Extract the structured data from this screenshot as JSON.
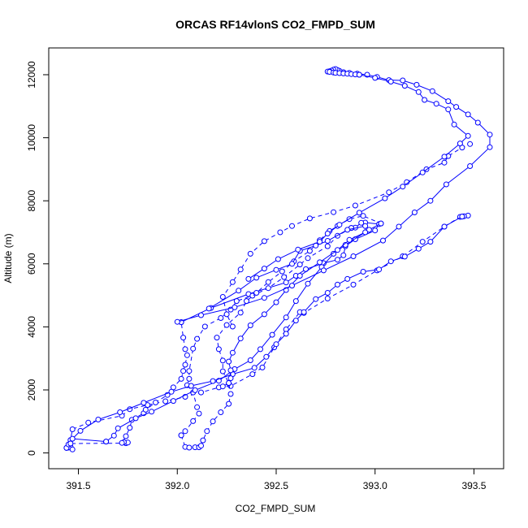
{
  "chart_data": {
    "type": "line",
    "title": "ORCAS RF14vlonS CO2_FMPD_SUM",
    "xlabel": "CO2_FMPD_SUM",
    "ylabel": "Altitude (m)",
    "xlim": [
      391.35,
      393.65
    ],
    "ylim": [
      -500,
      12850
    ],
    "x_ticks": [
      391.5,
      392.0,
      392.5,
      393.0,
      393.5
    ],
    "x_tick_labels": [
      "391.5",
      "392.0",
      "392.5",
      "393.0",
      "393.5"
    ],
    "y_ticks": [
      0,
      2000,
      4000,
      6000,
      8000,
      10000,
      12000
    ],
    "y_tick_labels": [
      "0",
      "2000",
      "4000",
      "6000",
      "8000",
      "10000",
      "12000"
    ],
    "grid": false,
    "legend": "none",
    "colors": {
      "series": "#0000ff",
      "axis": "#000000"
    },
    "series": [
      {
        "line_style": "dashed",
        "points": [
          [
            393.47,
            7530
          ],
          [
            393.45,
            7510
          ],
          [
            393.44,
            7500
          ],
          [
            393.43,
            7490
          ],
          [
            393.35,
            7180
          ],
          [
            393.24,
            6700
          ],
          [
            393.14,
            6240
          ],
          [
            393.01,
            5790
          ],
          [
            392.89,
            5340
          ],
          [
            392.76,
            4900
          ],
          [
            392.64,
            4440
          ],
          [
            392.62,
            4470
          ],
          [
            392.55,
            3920
          ],
          [
            392.49,
            3350
          ],
          [
            392.43,
            2710
          ],
          [
            392.38,
            2500
          ],
          [
            392.27,
            2120
          ],
          [
            392.21,
            2080
          ],
          [
            392.12,
            1920
          ],
          [
            392.04,
            1780
          ],
          [
            391.94,
            1640
          ],
          [
            391.85,
            1520
          ],
          [
            391.76,
            1390
          ],
          [
            391.72,
            1180
          ],
          [
            391.55,
            960
          ],
          [
            391.47,
            750
          ],
          [
            391.46,
            410
          ],
          [
            391.46,
            200
          ],
          [
            391.45,
            170
          ],
          [
            391.44,
            160
          ],
          [
            391.47,
            110
          ]
        ]
      },
      {
        "line_style": "dashed",
        "points": [
          [
            391.44,
            160
          ],
          [
            391.45,
            270
          ],
          [
            391.46,
            300
          ],
          [
            391.74,
            310
          ],
          [
            391.75,
            330
          ],
          [
            391.73,
            340
          ],
          [
            391.72,
            320
          ],
          [
            391.74,
            530
          ],
          [
            391.76,
            800
          ],
          [
            391.77,
            1050
          ],
          [
            391.83,
            1260
          ],
          [
            391.84,
            1370
          ],
          [
            391.89,
            1600
          ],
          [
            391.95,
            1840
          ],
          [
            391.98,
            2080
          ],
          [
            392.02,
            2350
          ],
          [
            392.03,
            2600
          ],
          [
            392.04,
            2800
          ],
          [
            392.05,
            3100
          ],
          [
            392.04,
            3290
          ],
          [
            392.03,
            3660
          ],
          [
            392.02,
            4150
          ]
        ]
      },
      {
        "line_style": "solid",
        "points": [
          [
            392.02,
            4150
          ],
          [
            392.17,
            4600
          ],
          [
            392.36,
            5040
          ],
          [
            392.55,
            5410
          ],
          [
            392.6,
            5620
          ],
          [
            392.65,
            5830
          ],
          [
            392.74,
            6020
          ],
          [
            392.81,
            6130
          ],
          [
            392.84,
            6270
          ],
          [
            392.85,
            6560
          ],
          [
            392.9,
            6780
          ],
          [
            393.0,
            7060
          ],
          [
            393.02,
            7260
          ],
          [
            392.95,
            7310
          ],
          [
            392.93,
            7300
          ],
          [
            392.9,
            7150
          ],
          [
            392.88,
            7140
          ]
        ]
      },
      {
        "line_style": "dashed",
        "points": [
          [
            392.88,
            7140
          ],
          [
            392.81,
            6890
          ],
          [
            392.76,
            6560
          ],
          [
            392.66,
            6180
          ],
          [
            392.62,
            5980
          ],
          [
            392.54,
            5580
          ],
          [
            392.46,
            5230
          ],
          [
            392.38,
            4990
          ],
          [
            392.3,
            4820
          ],
          [
            392.27,
            4550
          ],
          [
            392.22,
            4280
          ],
          [
            392.14,
            4010
          ],
          [
            392.1,
            3620
          ],
          [
            392.08,
            3310
          ],
          [
            392.06,
            2600
          ],
          [
            392.06,
            2350
          ],
          [
            392.05,
            2150
          ],
          [
            392.08,
            1920
          ],
          [
            392.1,
            1450
          ],
          [
            392.11,
            1250
          ],
          [
            392.08,
            1010
          ],
          [
            392.04,
            690
          ],
          [
            392.02,
            560
          ]
        ]
      },
      {
        "line_style": "dashed",
        "points": [
          [
            392.02,
            560
          ],
          [
            392.04,
            190
          ],
          [
            392.06,
            170
          ],
          [
            392.09,
            180
          ],
          [
            392.11,
            180
          ],
          [
            392.12,
            230
          ],
          [
            392.13,
            400
          ],
          [
            392.15,
            690
          ],
          [
            392.18,
            1000
          ],
          [
            392.22,
            1290
          ],
          [
            392.26,
            1560
          ],
          [
            392.27,
            1870
          ],
          [
            392.26,
            2210
          ],
          [
            392.23,
            2590
          ],
          [
            392.23,
            2930
          ],
          [
            392.21,
            3290
          ],
          [
            392.2,
            3660
          ],
          [
            392.25,
            4060
          ],
          [
            392.32,
            4450
          ],
          [
            392.35,
            4820
          ],
          [
            392.4,
            5080
          ],
          [
            392.46,
            5420
          ],
          [
            392.53,
            5760
          ],
          [
            392.59,
            6080
          ],
          [
            392.67,
            6410
          ],
          [
            392.72,
            6750
          ],
          [
            392.77,
            7040
          ],
          [
            392.81,
            7200
          ],
          [
            392.87,
            7420
          ],
          [
            392.94,
            7520
          ],
          [
            393.03,
            7280
          ]
        ]
      },
      {
        "line_style": "solid",
        "points": [
          [
            393.03,
            7280
          ],
          [
            392.97,
            7080
          ],
          [
            392.85,
            6600
          ],
          [
            392.79,
            6320
          ],
          [
            392.73,
            5900
          ],
          [
            392.66,
            5370
          ],
          [
            392.6,
            4820
          ],
          [
            392.55,
            4300
          ],
          [
            392.48,
            3750
          ],
          [
            392.42,
            3290
          ],
          [
            392.37,
            2940
          ],
          [
            392.29,
            2660
          ],
          [
            392.21,
            2290
          ],
          [
            392.09,
            1990
          ],
          [
            391.98,
            1650
          ],
          [
            391.87,
            1310
          ],
          [
            391.79,
            1100
          ],
          [
            391.7,
            780
          ],
          [
            391.68,
            550
          ],
          [
            391.64,
            360
          ]
        ]
      },
      {
        "line_style": "solid",
        "points": [
          [
            391.64,
            360
          ],
          [
            391.47,
            450
          ],
          [
            391.51,
            700
          ],
          [
            391.6,
            1060
          ],
          [
            391.71,
            1290
          ],
          [
            391.83,
            1590
          ],
          [
            391.97,
            1940
          ],
          [
            392.07,
            2130
          ],
          [
            392.18,
            2280
          ],
          [
            392.28,
            2500
          ],
          [
            392.39,
            2700
          ],
          [
            392.45,
            3050
          ],
          [
            392.5,
            3450
          ],
          [
            392.55,
            3780
          ],
          [
            392.6,
            4200
          ],
          [
            392.64,
            4470
          ],
          [
            392.7,
            4880
          ],
          [
            392.76,
            5080
          ],
          [
            392.81,
            5340
          ],
          [
            392.86,
            5520
          ],
          [
            392.94,
            5750
          ],
          [
            393.02,
            5820
          ],
          [
            393.08,
            6080
          ],
          [
            393.15,
            6230
          ],
          [
            393.22,
            6480
          ],
          [
            393.28,
            6700
          ],
          [
            393.35,
            7180
          ],
          [
            393.44,
            7500
          ]
        ]
      },
      {
        "line_style": "solid",
        "points": [
          [
            392.16,
            4580
          ],
          [
            392.31,
            5150
          ],
          [
            392.4,
            5560
          ],
          [
            392.5,
            5810
          ],
          [
            392.58,
            6000
          ],
          [
            392.62,
            6410
          ],
          [
            392.7,
            6580
          ],
          [
            392.76,
            6730
          ],
          [
            392.86,
            7080
          ],
          [
            392.95,
            7200
          ],
          [
            392.95,
            7000
          ],
          [
            392.87,
            6760
          ],
          [
            392.81,
            6440
          ],
          [
            392.72,
            6050
          ],
          [
            392.62,
            5620
          ],
          [
            392.55,
            5170
          ],
          [
            392.5,
            4780
          ],
          [
            392.44,
            4400
          ],
          [
            392.37,
            4050
          ],
          [
            392.32,
            3630
          ],
          [
            392.28,
            3180
          ],
          [
            392.26,
            2900
          ],
          [
            392.27,
            2620
          ],
          [
            392.27,
            2370
          ],
          [
            392.26,
            2220
          ],
          [
            392.23,
            2110
          ]
        ]
      },
      {
        "line_style": "dashed",
        "points": [
          [
            392.28,
            4010
          ],
          [
            392.25,
            4400
          ],
          [
            392.23,
            4950
          ],
          [
            392.28,
            5420
          ],
          [
            392.32,
            5820
          ],
          [
            392.37,
            6320
          ],
          [
            392.44,
            6720
          ],
          [
            392.52,
            7000
          ],
          [
            392.58,
            7200
          ],
          [
            392.67,
            7440
          ],
          [
            392.79,
            7640
          ],
          [
            392.9,
            7850
          ],
          [
            393.07,
            8270
          ],
          [
            393.16,
            8590
          ],
          [
            393.26,
            9000
          ],
          [
            393.35,
            9210
          ],
          [
            393.37,
            9420
          ],
          [
            393.44,
            9690
          ],
          [
            393.48,
            9800
          ]
        ]
      },
      {
        "line_style": "solid",
        "points": [
          [
            392.0,
            4160
          ],
          [
            392.12,
            4370
          ],
          [
            392.29,
            4620
          ],
          [
            392.44,
            4920
          ],
          [
            392.58,
            5310
          ],
          [
            392.74,
            5790
          ],
          [
            392.89,
            6240
          ],
          [
            393.04,
            6740
          ],
          [
            393.12,
            7180
          ],
          [
            393.2,
            7630
          ],
          [
            393.28,
            8000
          ],
          [
            393.36,
            8520
          ],
          [
            393.48,
            9100
          ],
          [
            393.58,
            9700
          ],
          [
            393.58,
            10100
          ],
          [
            393.52,
            10480
          ],
          [
            393.47,
            10740
          ],
          [
            393.41,
            10980
          ],
          [
            393.37,
            11160
          ],
          [
            393.29,
            11480
          ],
          [
            393.21,
            11680
          ],
          [
            393.14,
            11820
          ],
          [
            393.07,
            11830
          ],
          [
            393.01,
            11930
          ],
          [
            392.96,
            12000
          ],
          [
            392.91,
            12030
          ]
        ]
      },
      {
        "line_style": "solid",
        "points": [
          [
            392.91,
            12030
          ],
          [
            392.87,
            12060
          ],
          [
            392.84,
            12080
          ],
          [
            392.82,
            12120
          ],
          [
            392.81,
            12150
          ],
          [
            392.8,
            12180
          ],
          [
            392.79,
            12160
          ],
          [
            392.78,
            12130
          ],
          [
            392.77,
            12110
          ],
          [
            392.76,
            12100
          ],
          [
            392.77,
            12090
          ],
          [
            392.79,
            12070
          ],
          [
            392.8,
            12060
          ],
          [
            392.82,
            12050
          ],
          [
            392.84,
            12040
          ],
          [
            392.86,
            12030
          ],
          [
            392.88,
            12020
          ],
          [
            392.9,
            12010
          ],
          [
            392.92,
            12000
          ]
        ]
      },
      {
        "line_style": "solid",
        "points": [
          [
            392.92,
            12000
          ],
          [
            393.0,
            11900
          ],
          [
            393.08,
            11780
          ],
          [
            393.15,
            11650
          ],
          [
            393.22,
            11450
          ],
          [
            393.25,
            11200
          ],
          [
            393.31,
            11080
          ],
          [
            393.37,
            10900
          ],
          [
            393.4,
            10420
          ],
          [
            393.47,
            10060
          ],
          [
            393.43,
            9820
          ],
          [
            393.35,
            9400
          ],
          [
            393.24,
            8900
          ],
          [
            393.14,
            8450
          ],
          [
            393.05,
            8080
          ],
          [
            392.92,
            7620
          ],
          [
            392.82,
            7240
          ],
          [
            392.76,
            6960
          ],
          [
            392.72,
            6700
          ],
          [
            392.61,
            6450
          ],
          [
            392.51,
            6150
          ],
          [
            392.44,
            5850
          ],
          [
            392.36,
            5520
          ]
        ]
      }
    ]
  }
}
